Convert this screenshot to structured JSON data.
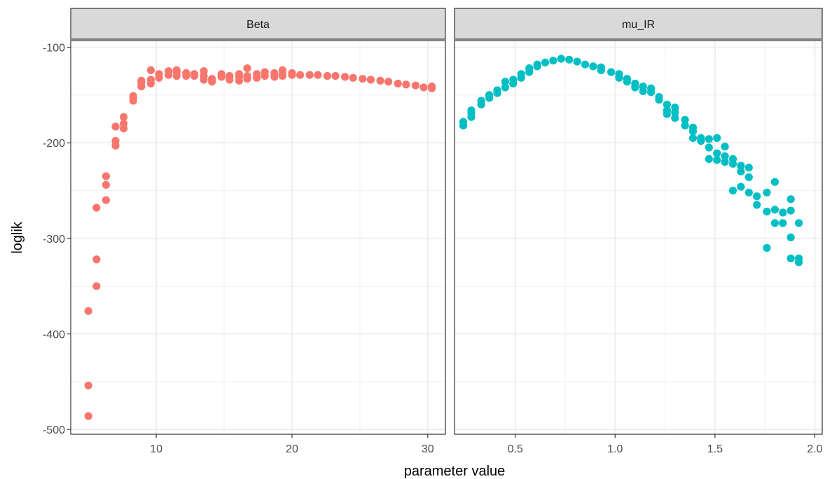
{
  "chart_data": {
    "type": "scatter",
    "xlabel": "parameter value",
    "ylabel": "loglik",
    "ylim": [
      -505,
      -93
    ],
    "y_ticks": [
      -100,
      -200,
      -300,
      -400,
      -500
    ],
    "y_tick_labels": [
      "-100",
      "-200",
      "-300",
      "-400",
      "-500"
    ],
    "grid": true,
    "legend": "none",
    "panels": [
      {
        "name": "Beta",
        "color": "#f8766d",
        "xlim": [
          3.7,
          31.3
        ],
        "x_ticks": [
          10,
          20,
          30
        ],
        "x_tick_labels": [
          "10",
          "20",
          "30"
        ],
        "points": [
          [
            5,
            -486
          ],
          [
            5,
            -454
          ],
          [
            5,
            -376
          ],
          [
            5.6,
            -350
          ],
          [
            5.6,
            -322
          ],
          [
            5.6,
            -268
          ],
          [
            6.3,
            -260
          ],
          [
            6.3,
            -244
          ],
          [
            6.3,
            -235
          ],
          [
            7,
            -203
          ],
          [
            7,
            -198
          ],
          [
            7,
            -183
          ],
          [
            7.6,
            -185
          ],
          [
            7.6,
            -180
          ],
          [
            7.6,
            -173
          ],
          [
            8.3,
            -156
          ],
          [
            8.3,
            -153
          ],
          [
            8.3,
            -151
          ],
          [
            8.9,
            -141
          ],
          [
            8.9,
            -137
          ],
          [
            8.9,
            -135
          ],
          [
            9.6,
            -138
          ],
          [
            9.6,
            -134
          ],
          [
            9.6,
            -124
          ],
          [
            10.2,
            -132
          ],
          [
            10.2,
            -128
          ],
          [
            10.9,
            -129
          ],
          [
            10.9,
            -125
          ],
          [
            11.5,
            -130
          ],
          [
            11.5,
            -126
          ],
          [
            11.5,
            -124
          ],
          [
            12.2,
            -130
          ],
          [
            12.2,
            -127
          ],
          [
            12.8,
            -130
          ],
          [
            12.8,
            -128
          ],
          [
            13.5,
            -134
          ],
          [
            13.5,
            -130
          ],
          [
            13.5,
            -125
          ],
          [
            14.1,
            -136
          ],
          [
            14.1,
            -133
          ],
          [
            14.8,
            -131
          ],
          [
            14.8,
            -128
          ],
          [
            15.4,
            -134
          ],
          [
            15.4,
            -130
          ],
          [
            16.1,
            -135
          ],
          [
            16.1,
            -131
          ],
          [
            16.1,
            -128
          ],
          [
            16.7,
            -133
          ],
          [
            16.7,
            -130
          ],
          [
            16.7,
            -122
          ],
          [
            17.4,
            -132
          ],
          [
            17.4,
            -128
          ],
          [
            18,
            -130
          ],
          [
            18,
            -126
          ],
          [
            18.7,
            -131
          ],
          [
            18.7,
            -127
          ],
          [
            19.3,
            -130
          ],
          [
            19.3,
            -128
          ],
          [
            19.3,
            -124
          ],
          [
            20,
            -129
          ],
          [
            20,
            -127
          ],
          [
            20.6,
            -129
          ],
          [
            21.3,
            -129
          ],
          [
            21.9,
            -129
          ],
          [
            22.6,
            -130
          ],
          [
            23.2,
            -130
          ],
          [
            23.9,
            -131
          ],
          [
            24.5,
            -132
          ],
          [
            25.2,
            -133
          ],
          [
            25.8,
            -134
          ],
          [
            26.5,
            -135
          ],
          [
            27.1,
            -136
          ],
          [
            27.8,
            -138
          ],
          [
            28.4,
            -139
          ],
          [
            29.1,
            -140
          ],
          [
            29.7,
            -142
          ],
          [
            30.3,
            -141
          ],
          [
            30.3,
            -143
          ]
        ]
      },
      {
        "name": "mu_IR",
        "color": "#00bfc4",
        "xlim": [
          0.196,
          2.037
        ],
        "x_ticks": [
          0.5,
          1.0,
          1.5,
          2.0
        ],
        "x_tick_labels": [
          "0.5",
          "1.0",
          "1.5",
          "2.0"
        ],
        "points": [
          [
            0.24,
            -182
          ],
          [
            0.24,
            -178
          ],
          [
            0.28,
            -173
          ],
          [
            0.28,
            -169
          ],
          [
            0.28,
            -166
          ],
          [
            0.33,
            -160
          ],
          [
            0.33,
            -156
          ],
          [
            0.37,
            -153
          ],
          [
            0.37,
            -150
          ],
          [
            0.41,
            -148
          ],
          [
            0.41,
            -145
          ],
          [
            0.45,
            -142
          ],
          [
            0.45,
            -136
          ],
          [
            0.49,
            -138
          ],
          [
            0.49,
            -134
          ],
          [
            0.53,
            -132
          ],
          [
            0.53,
            -128
          ],
          [
            0.57,
            -126
          ],
          [
            0.57,
            -122
          ],
          [
            0.61,
            -120
          ],
          [
            0.61,
            -118
          ],
          [
            0.65,
            -116
          ],
          [
            0.69,
            -114
          ],
          [
            0.73,
            -112
          ],
          [
            0.77,
            -113
          ],
          [
            0.81,
            -115
          ],
          [
            0.85,
            -118
          ],
          [
            0.89,
            -120
          ],
          [
            0.93,
            -124
          ],
          [
            0.93,
            -121
          ],
          [
            0.98,
            -126
          ],
          [
            1.02,
            -132
          ],
          [
            1.02,
            -128
          ],
          [
            1.06,
            -136
          ],
          [
            1.06,
            -133
          ],
          [
            1.1,
            -142
          ],
          [
            1.1,
            -138
          ],
          [
            1.14,
            -146
          ],
          [
            1.14,
            -141
          ],
          [
            1.18,
            -147
          ],
          [
            1.18,
            -143
          ],
          [
            1.22,
            -155
          ],
          [
            1.22,
            -152
          ],
          [
            1.26,
            -170
          ],
          [
            1.26,
            -166
          ],
          [
            1.26,
            -160
          ],
          [
            1.3,
            -174
          ],
          [
            1.3,
            -168
          ],
          [
            1.3,
            -163
          ],
          [
            1.35,
            -182
          ],
          [
            1.35,
            -176
          ],
          [
            1.39,
            -195
          ],
          [
            1.39,
            -188
          ],
          [
            1.39,
            -184
          ],
          [
            1.43,
            -198
          ],
          [
            1.43,
            -195
          ],
          [
            1.47,
            -217
          ],
          [
            1.47,
            -205
          ],
          [
            1.47,
            -196
          ],
          [
            1.51,
            -218
          ],
          [
            1.51,
            -211
          ],
          [
            1.51,
            -195
          ],
          [
            1.55,
            -220
          ],
          [
            1.55,
            -214
          ],
          [
            1.55,
            -204
          ],
          [
            1.59,
            -250
          ],
          [
            1.59,
            -222
          ],
          [
            1.59,
            -217
          ],
          [
            1.63,
            -246
          ],
          [
            1.63,
            -230
          ],
          [
            1.63,
            -224
          ],
          [
            1.67,
            -252
          ],
          [
            1.67,
            -236
          ],
          [
            1.67,
            -226
          ],
          [
            1.71,
            -265
          ],
          [
            1.71,
            -256
          ],
          [
            1.76,
            -310
          ],
          [
            1.76,
            -272
          ],
          [
            1.76,
            -252
          ],
          [
            1.8,
            -284
          ],
          [
            1.8,
            -270
          ],
          [
            1.8,
            -241
          ],
          [
            1.84,
            -284
          ],
          [
            1.84,
            -273
          ],
          [
            1.88,
            -321
          ],
          [
            1.88,
            -299
          ],
          [
            1.88,
            -271
          ],
          [
            1.88,
            -259
          ],
          [
            1.92,
            -325
          ],
          [
            1.92,
            -321
          ],
          [
            1.92,
            -284
          ]
        ]
      }
    ]
  }
}
